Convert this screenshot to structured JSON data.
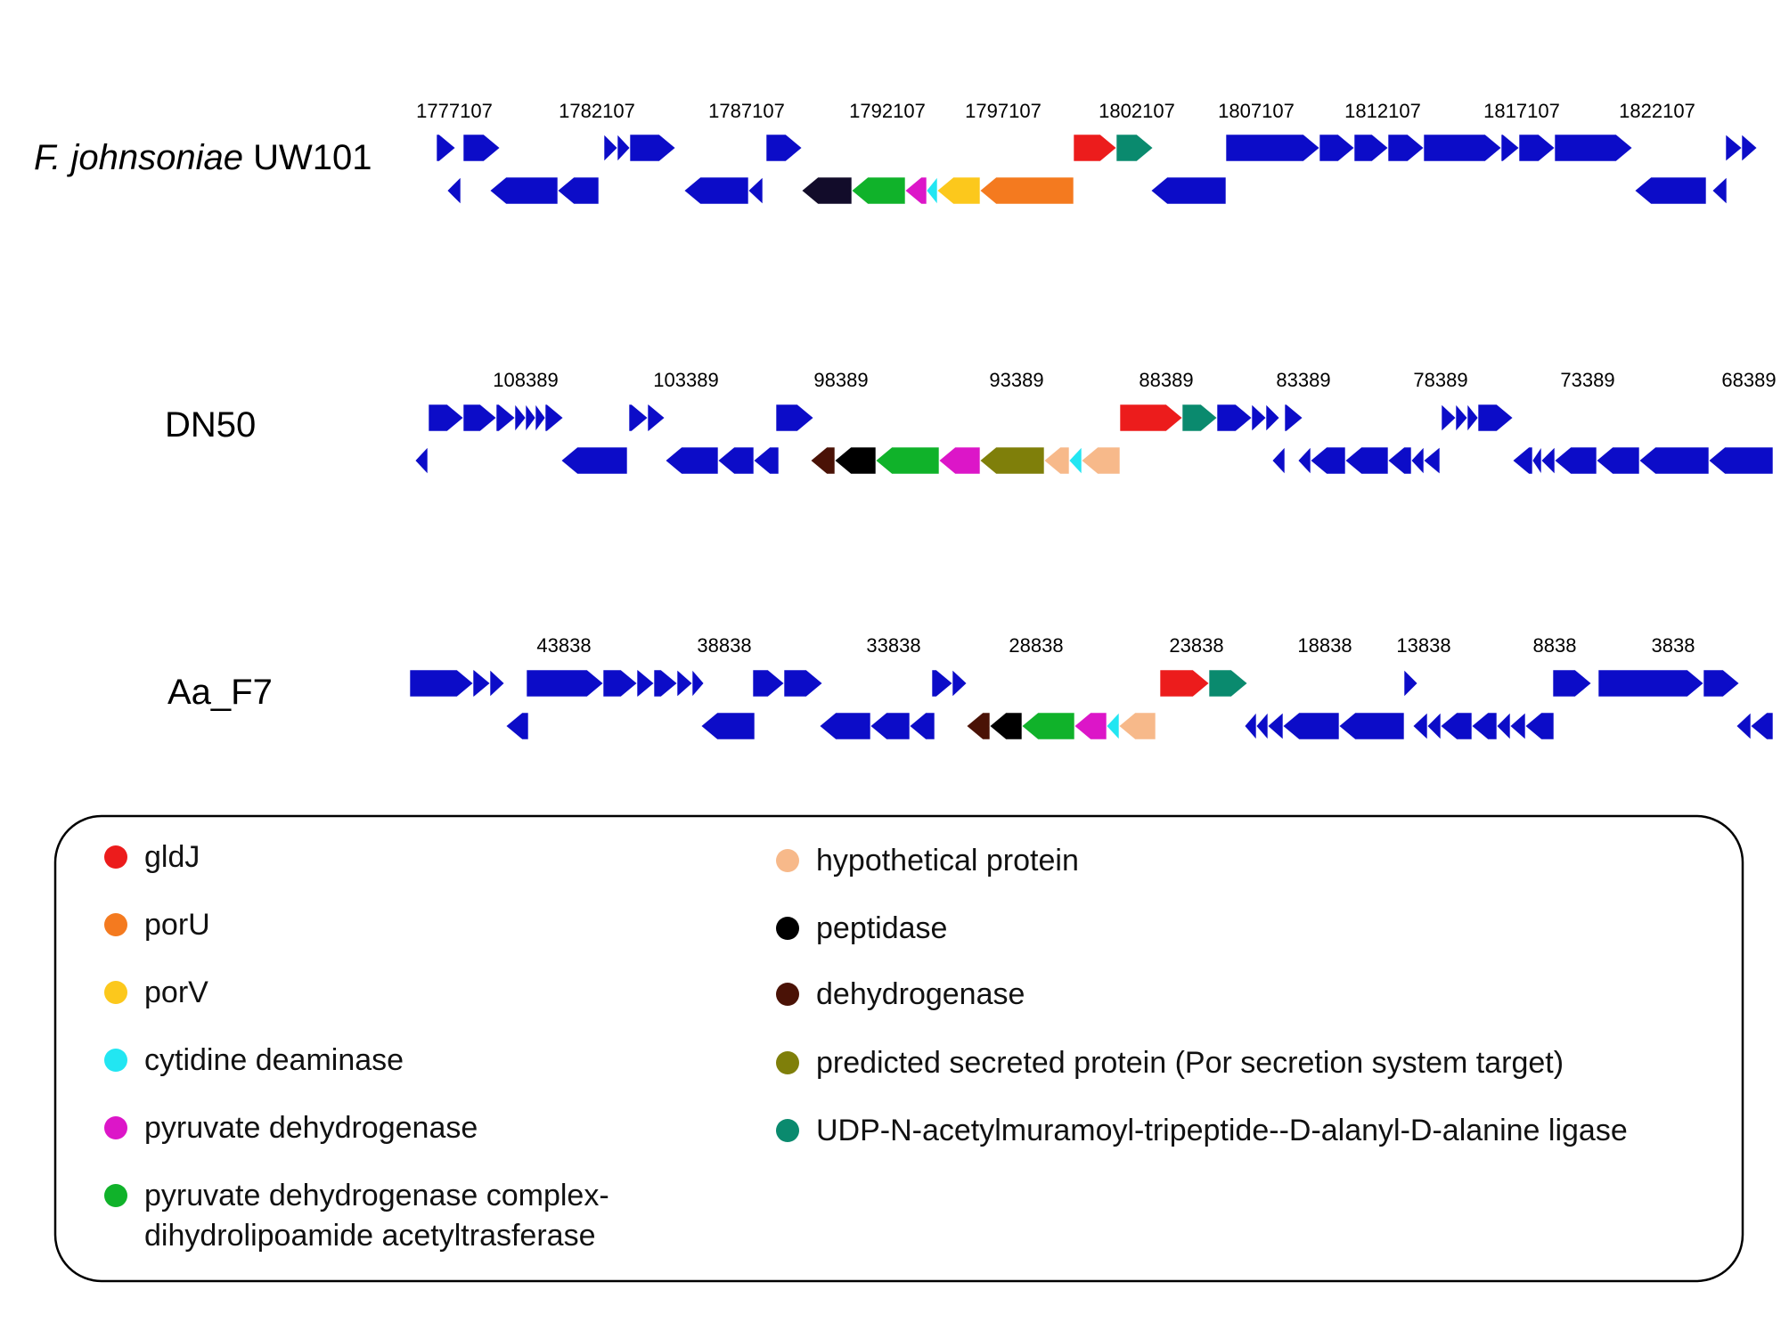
{
  "colors": {
    "other": "#0c0cc8",
    "gldJ": "#ec1c1c",
    "porU": "#f47a1f",
    "porV": "#fcc81c",
    "cytidine_deaminase": "#22e6f2",
    "pyruvate_dehydrogenase": "#dc16c8",
    "pdh_complex": "#10b22a",
    "hypothetical": "#f7b98a",
    "peptidase": "#000000",
    "dehydrogenase": "#4a1206",
    "predicted_secreted": "#7f7f0a",
    "udp_ligase": "#0a8a6e",
    "peptidase_fj": "#120c2a"
  },
  "genomes": [
    {
      "label_italic": "F. johnsoniae",
      "label_rest": " UW101",
      "coords": [
        "1777107",
        "1782107",
        "1787107",
        "1792107",
        "1797107",
        "1802107",
        "1807107",
        "1812107",
        "1817107",
        "1822107"
      ],
      "genes": [
        {
          "s": 490,
          "e": 511,
          "strand": "+",
          "c": "other"
        },
        {
          "s": 520,
          "e": 561,
          "strand": "+",
          "c": "other"
        },
        {
          "s": 678,
          "e": 693,
          "strand": "+",
          "c": "other"
        },
        {
          "s": 693,
          "e": 707,
          "strand": "+",
          "c": "other"
        },
        {
          "s": 707,
          "e": 758,
          "strand": "+",
          "c": "other"
        },
        {
          "s": 860,
          "e": 900,
          "strand": "+",
          "c": "other"
        },
        {
          "s": 1205,
          "e": 1253,
          "strand": "+",
          "c": "gldJ"
        },
        {
          "s": 1253,
          "e": 1294,
          "strand": "+",
          "c": "udp_ligase"
        },
        {
          "s": 1376,
          "e": 1481,
          "strand": "+",
          "c": "other"
        },
        {
          "s": 1481,
          "e": 1520,
          "strand": "+",
          "c": "other"
        },
        {
          "s": 1520,
          "e": 1558,
          "strand": "+",
          "c": "other"
        },
        {
          "s": 1558,
          "e": 1598,
          "strand": "+",
          "c": "other"
        },
        {
          "s": 1598,
          "e": 1685,
          "strand": "+",
          "c": "other"
        },
        {
          "s": 1685,
          "e": 1705,
          "strand": "+",
          "c": "other"
        },
        {
          "s": 1705,
          "e": 1745,
          "strand": "+",
          "c": "other"
        },
        {
          "s": 1745,
          "e": 1832,
          "strand": "+",
          "c": "other"
        },
        {
          "s": 1937,
          "e": 1955,
          "strand": "+",
          "c": "other"
        },
        {
          "s": 1955,
          "e": 1972,
          "strand": "+",
          "c": "other"
        },
        {
          "s": 502,
          "e": 517,
          "strand": "-",
          "c": "other"
        },
        {
          "s": 550,
          "e": 626,
          "strand": "-",
          "c": "other"
        },
        {
          "s": 626,
          "e": 672,
          "strand": "-",
          "c": "other"
        },
        {
          "s": 768,
          "e": 840,
          "strand": "-",
          "c": "other"
        },
        {
          "s": 840,
          "e": 856,
          "strand": "-",
          "c": "other"
        },
        {
          "s": 900,
          "e": 956,
          "strand": "-",
          "c": "peptidase_fj"
        },
        {
          "s": 956,
          "e": 1016,
          "strand": "-",
          "c": "pdh_complex"
        },
        {
          "s": 1016,
          "e": 1040,
          "strand": "-",
          "c": "pyruvate_dehydrogenase"
        },
        {
          "s": 1040,
          "e": 1052,
          "strand": "-",
          "c": "cytidine_deaminase"
        },
        {
          "s": 1052,
          "e": 1100,
          "strand": "-",
          "c": "porV"
        },
        {
          "s": 1100,
          "e": 1205,
          "strand": "-",
          "c": "porU"
        },
        {
          "s": 1292,
          "e": 1376,
          "strand": "-",
          "c": "other"
        },
        {
          "s": 1835,
          "e": 1915,
          "strand": "-",
          "c": "other"
        },
        {
          "s": 1922,
          "e": 1938,
          "strand": "-",
          "c": "other"
        }
      ]
    },
    {
      "label_italic": "",
      "label_rest": "DN50",
      "coords": [
        "108389",
        "103389",
        "98389",
        "93389",
        "88389",
        "83389",
        "78389",
        "73389",
        "68389"
      ],
      "genes": [
        {
          "s": 481,
          "e": 520,
          "strand": "+",
          "c": "other"
        },
        {
          "s": 520,
          "e": 557,
          "strand": "+",
          "c": "other"
        },
        {
          "s": 557,
          "e": 578,
          "strand": "+",
          "c": "other"
        },
        {
          "s": 578,
          "e": 590,
          "strand": "+",
          "c": "other"
        },
        {
          "s": 590,
          "e": 601,
          "strand": "+",
          "c": "other"
        },
        {
          "s": 601,
          "e": 612,
          "strand": "+",
          "c": "other"
        },
        {
          "s": 612,
          "e": 632,
          "strand": "+",
          "c": "other"
        },
        {
          "s": 706,
          "e": 727,
          "strand": "+",
          "c": "other"
        },
        {
          "s": 727,
          "e": 746,
          "strand": "+",
          "c": "other"
        },
        {
          "s": 871,
          "e": 913,
          "strand": "+",
          "c": "other"
        },
        {
          "s": 1257,
          "e": 1327,
          "strand": "+",
          "c": "gldJ"
        },
        {
          "s": 1327,
          "e": 1366,
          "strand": "+",
          "c": "udp_ligase"
        },
        {
          "s": 1366,
          "e": 1405,
          "strand": "+",
          "c": "other"
        },
        {
          "s": 1405,
          "e": 1421,
          "strand": "+",
          "c": "other"
        },
        {
          "s": 1421,
          "e": 1436,
          "strand": "+",
          "c": "other"
        },
        {
          "s": 1442,
          "e": 1462,
          "strand": "+",
          "c": "other"
        },
        {
          "s": 1618,
          "e": 1634,
          "strand": "+",
          "c": "other"
        },
        {
          "s": 1634,
          "e": 1647,
          "strand": "+",
          "c": "other"
        },
        {
          "s": 1647,
          "e": 1659,
          "strand": "+",
          "c": "other"
        },
        {
          "s": 1659,
          "e": 1698,
          "strand": "+",
          "c": "other"
        },
        {
          "s": 466,
          "e": 480,
          "strand": "-",
          "c": "other"
        },
        {
          "s": 630,
          "e": 704,
          "strand": "-",
          "c": "other"
        },
        {
          "s": 747,
          "e": 806,
          "strand": "-",
          "c": "other"
        },
        {
          "s": 806,
          "e": 846,
          "strand": "-",
          "c": "other"
        },
        {
          "s": 846,
          "e": 874,
          "strand": "-",
          "c": "other"
        },
        {
          "s": 910,
          "e": 937,
          "strand": "-",
          "c": "dehydrogenase"
        },
        {
          "s": 937,
          "e": 983,
          "strand": "-",
          "c": "peptidase"
        },
        {
          "s": 983,
          "e": 1054,
          "strand": "-",
          "c": "pdh_complex"
        },
        {
          "s": 1054,
          "e": 1100,
          "strand": "-",
          "c": "pyruvate_dehydrogenase"
        },
        {
          "s": 1100,
          "e": 1172,
          "strand": "-",
          "c": "predicted_secreted"
        },
        {
          "s": 1172,
          "e": 1200,
          "strand": "-",
          "c": "hypothetical"
        },
        {
          "s": 1200,
          "e": 1214,
          "strand": "-",
          "c": "cytidine_deaminase"
        },
        {
          "s": 1214,
          "e": 1257,
          "strand": "-",
          "c": "hypothetical"
        },
        {
          "s": 1428,
          "e": 1442,
          "strand": "-",
          "c": "other"
        },
        {
          "s": 1457,
          "e": 1471,
          "strand": "-",
          "c": "other"
        },
        {
          "s": 1471,
          "e": 1510,
          "strand": "-",
          "c": "other"
        },
        {
          "s": 1510,
          "e": 1558,
          "strand": "-",
          "c": "other"
        },
        {
          "s": 1558,
          "e": 1584,
          "strand": "-",
          "c": "other"
        },
        {
          "s": 1584,
          "e": 1598,
          "strand": "-",
          "c": "other"
        },
        {
          "s": 1598,
          "e": 1616,
          "strand": "-",
          "c": "other"
        },
        {
          "s": 1698,
          "e": 1720,
          "strand": "-",
          "c": "other"
        },
        {
          "s": 1720,
          "e": 1730,
          "strand": "-",
          "c": "other"
        },
        {
          "s": 1730,
          "e": 1745,
          "strand": "-",
          "c": "other"
        },
        {
          "s": 1745,
          "e": 1792,
          "strand": "-",
          "c": "other"
        },
        {
          "s": 1792,
          "e": 1840,
          "strand": "-",
          "c": "other"
        },
        {
          "s": 1840,
          "e": 1918,
          "strand": "-",
          "c": "other"
        },
        {
          "s": 1918,
          "e": 1990,
          "strand": "-",
          "c": "other"
        }
      ]
    },
    {
      "label_italic": "",
      "label_rest": "Aa_F7",
      "coords": [
        "43838",
        "38838",
        "33838",
        "28838",
        "23838",
        "18838",
        "13838",
        "8838",
        "3838"
      ],
      "genes": [
        {
          "s": 460,
          "e": 531,
          "strand": "+",
          "c": "other"
        },
        {
          "s": 531,
          "e": 550,
          "strand": "+",
          "c": "other"
        },
        {
          "s": 550,
          "e": 566,
          "strand": "+",
          "c": "other"
        },
        {
          "s": 591,
          "e": 677,
          "strand": "+",
          "c": "other"
        },
        {
          "s": 677,
          "e": 715,
          "strand": "+",
          "c": "other"
        },
        {
          "s": 715,
          "e": 734,
          "strand": "+",
          "c": "other"
        },
        {
          "s": 734,
          "e": 760,
          "strand": "+",
          "c": "other"
        },
        {
          "s": 760,
          "e": 777,
          "strand": "+",
          "c": "other"
        },
        {
          "s": 777,
          "e": 790,
          "strand": "+",
          "c": "other"
        },
        {
          "s": 845,
          "e": 880,
          "strand": "+",
          "c": "other"
        },
        {
          "s": 880,
          "e": 923,
          "strand": "+",
          "c": "other"
        },
        {
          "s": 1046,
          "e": 1069,
          "strand": "+",
          "c": "other"
        },
        {
          "s": 1069,
          "e": 1085,
          "strand": "+",
          "c": "other"
        },
        {
          "s": 1302,
          "e": 1357,
          "strand": "+",
          "c": "gldJ"
        },
        {
          "s": 1357,
          "e": 1400,
          "strand": "+",
          "c": "udp_ligase"
        },
        {
          "s": 1576,
          "e": 1591,
          "strand": "+",
          "c": "other"
        },
        {
          "s": 1743,
          "e": 1786,
          "strand": "+",
          "c": "other"
        },
        {
          "s": 1794,
          "e": 1912,
          "strand": "+",
          "c": "other"
        },
        {
          "s": 1912,
          "e": 1952,
          "strand": "+",
          "c": "other"
        },
        {
          "s": 568,
          "e": 593,
          "strand": "-",
          "c": "other"
        },
        {
          "s": 787,
          "e": 847,
          "strand": "-",
          "c": "other"
        },
        {
          "s": 920,
          "e": 977,
          "strand": "-",
          "c": "other"
        },
        {
          "s": 977,
          "e": 1021,
          "strand": "-",
          "c": "other"
        },
        {
          "s": 1021,
          "e": 1049,
          "strand": "-",
          "c": "other"
        },
        {
          "s": 1085,
          "e": 1111,
          "strand": "-",
          "c": "dehydrogenase"
        },
        {
          "s": 1111,
          "e": 1147,
          "strand": "-",
          "c": "peptidase"
        },
        {
          "s": 1147,
          "e": 1206,
          "strand": "-",
          "c": "pdh_complex"
        },
        {
          "s": 1206,
          "e": 1242,
          "strand": "-",
          "c": "pyruvate_dehydrogenase"
        },
        {
          "s": 1242,
          "e": 1256,
          "strand": "-",
          "c": "cytidine_deaminase"
        },
        {
          "s": 1256,
          "e": 1297,
          "strand": "-",
          "c": "hypothetical"
        },
        {
          "s": 1397,
          "e": 1410,
          "strand": "-",
          "c": "other"
        },
        {
          "s": 1410,
          "e": 1423,
          "strand": "-",
          "c": "other"
        },
        {
          "s": 1423,
          "e": 1440,
          "strand": "-",
          "c": "other"
        },
        {
          "s": 1440,
          "e": 1503,
          "strand": "-",
          "c": "other"
        },
        {
          "s": 1503,
          "e": 1576,
          "strand": "-",
          "c": "other"
        },
        {
          "s": 1586,
          "e": 1602,
          "strand": "-",
          "c": "other"
        },
        {
          "s": 1602,
          "e": 1617,
          "strand": "-",
          "c": "other"
        },
        {
          "s": 1617,
          "e": 1652,
          "strand": "-",
          "c": "other"
        },
        {
          "s": 1652,
          "e": 1680,
          "strand": "-",
          "c": "other"
        },
        {
          "s": 1680,
          "e": 1695,
          "strand": "-",
          "c": "other"
        },
        {
          "s": 1695,
          "e": 1712,
          "strand": "-",
          "c": "other"
        },
        {
          "s": 1712,
          "e": 1744,
          "strand": "-",
          "c": "other"
        },
        {
          "s": 1949,
          "e": 1965,
          "strand": "-",
          "c": "other"
        },
        {
          "s": 1965,
          "e": 1990,
          "strand": "-",
          "c": "other"
        }
      ]
    }
  ],
  "legend": {
    "left": [
      {
        "color": "gldJ",
        "label": "gldJ"
      },
      {
        "color": "porU",
        "label": "porU"
      },
      {
        "color": "porV",
        "label": "porV"
      },
      {
        "color": "cytidine_deaminase",
        "label": "cytidine deaminase"
      },
      {
        "color": "pyruvate_dehydrogenase",
        "label": "pyruvate dehydrogenase"
      },
      {
        "color": "pdh_complex",
        "label": "pyruvate dehydrogenase complex-",
        "label2": "dihydrolipoamide acetyltrasferase"
      }
    ],
    "right": [
      {
        "color": "hypothetical",
        "label": "hypothetical protein"
      },
      {
        "color": "peptidase",
        "label": "peptidase"
      },
      {
        "color": "dehydrogenase",
        "label": "dehydrogenase"
      },
      {
        "color": "predicted_secreted",
        "label": "predicted secreted protein (Por secretion system target)"
      },
      {
        "color": "udp_ligase",
        "label": "UDP-N-acetylmuramoyl-tripeptide--D-alanyl-D-alanine ligase"
      }
    ]
  }
}
